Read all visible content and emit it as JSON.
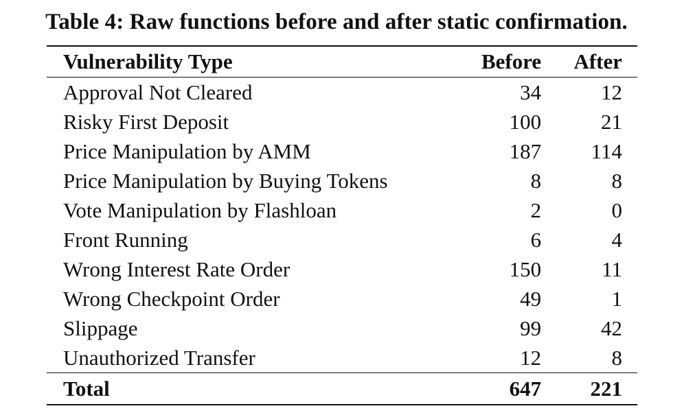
{
  "caption": "Table 4: Raw functions before and after static confirmation.",
  "table": {
    "headers": {
      "type": "Vulnerability Type",
      "before": "Before",
      "after": "After"
    },
    "rows": [
      {
        "type": "Approval Not Cleared",
        "before": "34",
        "after": "12"
      },
      {
        "type": "Risky First Deposit",
        "before": "100",
        "after": "21"
      },
      {
        "type": "Price Manipulation by AMM",
        "before": "187",
        "after": "114"
      },
      {
        "type": "Price Manipulation by Buying Tokens",
        "before": "8",
        "after": "8"
      },
      {
        "type": "Vote Manipulation by Flashloan",
        "before": "2",
        "after": "0"
      },
      {
        "type": "Front Running",
        "before": "6",
        "after": "4"
      },
      {
        "type": "Wrong Interest Rate Order",
        "before": "150",
        "after": "11"
      },
      {
        "type": "Wrong Checkpoint Order",
        "before": "49",
        "after": "1"
      },
      {
        "type": "Slippage",
        "before": "99",
        "after": "42"
      },
      {
        "type": "Unauthorized Transfer",
        "before": "12",
        "after": "8"
      }
    ],
    "total": {
      "type": "Total",
      "before": "647",
      "after": "221"
    }
  }
}
